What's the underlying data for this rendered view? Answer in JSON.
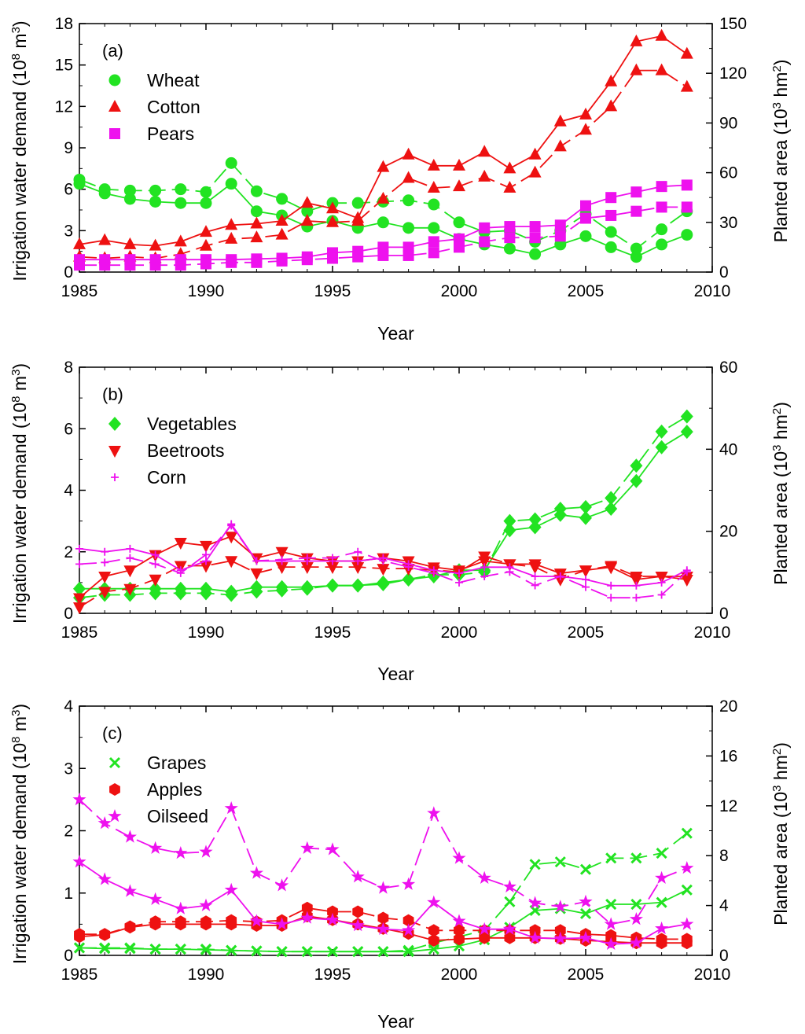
{
  "chart_data": [
    {
      "type": "line",
      "panel_label": "(a)",
      "xlabel": "Year",
      "ylabel_left": "Irrigation water demand (10",
      "ylabel_left_exp": "8",
      "ylabel_left_unit": " m",
      "ylabel_left_unit_exp": "3",
      "ylabel_left_tail": ")",
      "ylabel_right": "Planted area (10",
      "ylabel_right_exp": "3",
      "ylabel_right_unit": " hm",
      "ylabel_right_unit_exp": "2",
      "ylabel_right_tail": ")",
      "xlim": [
        1985,
        2010
      ],
      "ylim_left": [
        0,
        18
      ],
      "ylim_right": [
        0,
        150
      ],
      "xticks": [
        "1985",
        "1990",
        "1995",
        "2000",
        "2005",
        "2010"
      ],
      "yticks_left": [
        "0",
        "3",
        "6",
        "9",
        "12",
        "15",
        "18"
      ],
      "yticks_right": [
        "0",
        "30",
        "60",
        "90",
        "120",
        "150"
      ],
      "legend_placement": "top-left",
      "x": [
        1985,
        1986,
        1987,
        1988,
        1989,
        1990,
        1991,
        1992,
        1993,
        1994,
        1995,
        1996,
        1997,
        1998,
        1999,
        2000,
        2001,
        2002,
        2003,
        2004,
        2005,
        2006,
        2007,
        2008,
        2009
      ],
      "series": [
        {
          "name": "Wheat",
          "color": "#22e322",
          "marker": "circle",
          "legend": true,
          "demand": [
            6.4,
            5.7,
            5.3,
            5.1,
            5.0,
            5.0,
            6.4,
            4.4,
            4.1,
            3.3,
            3.7,
            3.2,
            3.6,
            3.2,
            3.2,
            2.4,
            2.0,
            1.7,
            1.3,
            2.0,
            2.6,
            1.8,
            1.1,
            2.0,
            2.7
          ],
          "area": [
            55.8,
            50.0,
            49.2,
            49.2,
            50.0,
            48.3,
            65.8,
            48.8,
            44.2,
            36.7,
            41.7,
            41.7,
            42.5,
            43.3,
            40.8,
            30.0,
            24.2,
            25.0,
            18.3,
            25.0,
            35.0,
            24.2,
            14.2,
            25.8,
            36.7
          ]
        },
        {
          "name": "Cotton",
          "color": "#ee1111",
          "marker": "triangle",
          "legend": true,
          "demand": [
            2.0,
            2.3,
            2.0,
            1.9,
            2.2,
            2.9,
            3.4,
            3.5,
            3.7,
            5.0,
            4.6,
            3.9,
            7.6,
            8.5,
            7.7,
            7.7,
            8.7,
            7.5,
            8.5,
            10.9,
            11.4,
            13.8,
            16.7,
            17.1,
            15.8
          ],
          "area": [
            9.2,
            8.3,
            9.2,
            8.3,
            10.8,
            15.8,
            20.0,
            20.8,
            22.5,
            30.8,
            30.0,
            30.8,
            44.2,
            56.7,
            50.8,
            51.7,
            57.5,
            50.8,
            60.0,
            75.8,
            85.8,
            100.0,
            121.7,
            121.7,
            111.7
          ]
        },
        {
          "name": "Pears",
          "color": "#ee11ee",
          "marker": "square",
          "legend": true,
          "demand": [
            0.9,
            0.9,
            0.9,
            0.9,
            0.9,
            0.9,
            0.9,
            0.95,
            1.0,
            1.1,
            1.4,
            1.5,
            1.8,
            1.8,
            2.2,
            2.4,
            3.2,
            3.3,
            3.3,
            3.4,
            4.8,
            5.4,
            5.8,
            6.2,
            6.3
          ],
          "area": [
            4.2,
            4.2,
            4.2,
            4.2,
            4.2,
            5.0,
            5.8,
            5.8,
            6.7,
            7.5,
            8.3,
            9.2,
            10.0,
            10.0,
            11.7,
            15.0,
            18.3,
            20.8,
            20.8,
            21.7,
            32.5,
            34.2,
            36.7,
            39.2,
            39.2
          ]
        }
      ]
    },
    {
      "type": "line",
      "panel_label": "(b)",
      "xlabel": "Year",
      "ylabel_left": "Irrigation water demand (10",
      "ylabel_left_exp": "8",
      "ylabel_left_unit": " m",
      "ylabel_left_unit_exp": "3",
      "ylabel_left_tail": ")",
      "ylabel_right": "Planted area (10",
      "ylabel_right_exp": "3",
      "ylabel_right_unit": " hm",
      "ylabel_right_unit_exp": "2",
      "ylabel_right_tail": ")",
      "xlim": [
        1985,
        2010
      ],
      "ylim_left": [
        0,
        8
      ],
      "ylim_right": [
        0,
        60
      ],
      "xticks": [
        "1985",
        "1990",
        "1995",
        "2000",
        "2005",
        "2010"
      ],
      "yticks_left": [
        "0",
        "2",
        "4",
        "6",
        "8"
      ],
      "yticks_right": [
        "0",
        "20",
        "40",
        "60"
      ],
      "legend_placement": "top-left",
      "x": [
        1985,
        1986,
        1987,
        1988,
        1989,
        1990,
        1991,
        1992,
        1993,
        1994,
        1995,
        1996,
        1997,
        1998,
        1999,
        2000,
        2001,
        2002,
        2003,
        2004,
        2005,
        2006,
        2007,
        2008,
        2009
      ],
      "series": [
        {
          "name": "Vegetables",
          "color": "#22e322",
          "marker": "diamond",
          "legend": true,
          "demand": [
            0.8,
            0.8,
            0.8,
            0.8,
            0.8,
            0.8,
            0.7,
            0.85,
            0.85,
            0.85,
            0.9,
            0.9,
            1.0,
            1.1,
            1.2,
            1.4,
            1.4,
            2.7,
            2.8,
            3.2,
            3.1,
            3.4,
            4.3,
            5.4,
            5.9
          ],
          "area": [
            3.8,
            4.5,
            4.5,
            4.9,
            4.9,
            4.9,
            4.5,
            5.3,
            5.6,
            6.0,
            6.8,
            6.8,
            7.1,
            8.3,
            9.4,
            9.4,
            10.1,
            22.5,
            22.9,
            25.5,
            25.9,
            28.1,
            36.0,
            44.3,
            48.0
          ]
        },
        {
          "name": "Beetroots",
          "color": "#ee1111",
          "marker": "triangle-down",
          "legend": true,
          "demand": [
            0.5,
            1.2,
            1.4,
            1.9,
            2.3,
            2.2,
            2.5,
            1.8,
            2.0,
            1.8,
            1.7,
            1.7,
            1.8,
            1.7,
            1.5,
            1.4,
            1.7,
            1.6,
            1.6,
            1.3,
            1.4,
            1.5,
            1.1,
            1.2,
            1.1
          ],
          "area": [
            1.5,
            5.3,
            6.0,
            8.3,
            11.6,
            11.6,
            12.8,
            9.8,
            11.3,
            11.3,
            11.3,
            11.3,
            10.9,
            10.9,
            10.5,
            10.1,
            13.9,
            12.0,
            11.3,
            8.3,
            10.5,
            11.6,
            9.0,
            9.0,
            9.0
          ]
        },
        {
          "name": "Corn",
          "color": "#ee11ee",
          "marker": "plus",
          "legend": true,
          "demand": [
            2.1,
            2.0,
            2.1,
            1.9,
            1.4,
            1.7,
            2.9,
            1.7,
            1.7,
            1.7,
            1.7,
            1.7,
            1.8,
            1.6,
            1.4,
            1.3,
            1.5,
            1.5,
            1.2,
            1.2,
            1.1,
            0.9,
            0.9,
            1.0,
            1.4
          ],
          "area": [
            12.0,
            12.4,
            13.5,
            12.0,
            9.8,
            14.3,
            21.4,
            12.8,
            13.1,
            13.5,
            13.5,
            15.0,
            12.8,
            11.3,
            9.8,
            7.5,
            9.0,
            10.1,
            6.8,
            9.0,
            6.4,
            3.8,
            3.8,
            4.5,
            10.1
          ]
        }
      ]
    },
    {
      "type": "line",
      "panel_label": "(c)",
      "xlabel": "Year",
      "ylabel_left": "Irrigation water demand (10",
      "ylabel_left_exp": "8",
      "ylabel_left_unit": " m",
      "ylabel_left_unit_exp": "3",
      "ylabel_left_tail": ")",
      "ylabel_right": "Planted area (10",
      "ylabel_right_exp": "3",
      "ylabel_right_unit": " hm",
      "ylabel_right_unit_exp": "2",
      "ylabel_right_tail": ")",
      "xlim": [
        1985,
        2010
      ],
      "ylim_left": [
        0,
        4
      ],
      "ylim_right": [
        0,
        20
      ],
      "xticks": [
        "1985",
        "1990",
        "1995",
        "2000",
        "2005",
        "2010"
      ],
      "yticks_left": [
        "0",
        "1",
        "2",
        "3",
        "4"
      ],
      "yticks_right": [
        "0",
        "4",
        "8",
        "12",
        "16",
        "20"
      ],
      "legend_placement": "top-left",
      "x": [
        1985,
        1986,
        1987,
        1988,
        1989,
        1990,
        1991,
        1992,
        1993,
        1994,
        1995,
        1996,
        1997,
        1998,
        1999,
        2000,
        2001,
        2002,
        2003,
        2004,
        2005,
        2006,
        2007,
        2008,
        2009
      ],
      "series": [
        {
          "name": "Grapes",
          "color": "#22e322",
          "marker": "x",
          "legend": true,
          "demand": [
            0.12,
            0.11,
            0.11,
            0.1,
            0.1,
            0.09,
            0.08,
            0.07,
            0.06,
            0.06,
            0.06,
            0.06,
            0.06,
            0.06,
            0.1,
            0.15,
            0.25,
            0.45,
            0.72,
            0.75,
            0.67,
            0.82,
            0.82,
            0.85,
            1.05
          ],
          "area": [
            0.6,
            0.6,
            0.6,
            0.5,
            0.5,
            0.5,
            0.4,
            0.35,
            0.3,
            0.3,
            0.3,
            0.3,
            0.3,
            0.4,
            1.0,
            1.5,
            2.0,
            4.3,
            7.3,
            7.5,
            6.9,
            7.8,
            7.8,
            8.2,
            9.8
          ]
        },
        {
          "name": "Apples",
          "color": "#ee1111",
          "marker": "hexagon",
          "legend": true,
          "demand": [
            0.3,
            0.33,
            0.45,
            0.5,
            0.5,
            0.5,
            0.5,
            0.48,
            0.48,
            0.63,
            0.57,
            0.5,
            0.43,
            0.35,
            0.24,
            0.26,
            0.28,
            0.28,
            0.28,
            0.27,
            0.24,
            0.22,
            0.2,
            0.2,
            0.2
          ],
          "area": [
            1.7,
            1.7,
            2.3,
            2.7,
            2.7,
            2.7,
            2.8,
            2.7,
            2.8,
            3.8,
            3.5,
            3.5,
            3.0,
            2.8,
            2.0,
            2.0,
            2.0,
            2.0,
            2.0,
            2.0,
            1.7,
            1.6,
            1.4,
            1.3,
            1.3
          ]
        },
        {
          "name": "Oilseed",
          "color": "#ee11ee",
          "marker": "star",
          "legend": true,
          "demand": [
            1.5,
            1.22,
            1.03,
            0.9,
            0.75,
            0.8,
            1.05,
            0.55,
            0.5,
            0.6,
            0.57,
            0.48,
            0.42,
            0.4,
            0.85,
            0.55,
            0.42,
            0.42,
            0.28,
            0.27,
            0.28,
            0.18,
            0.2,
            0.43,
            0.5
          ],
          "area": [
            12.5,
            10.6,
            9.5,
            8.6,
            8.2,
            8.3,
            11.8,
            6.6,
            5.6,
            8.6,
            8.5,
            6.3,
            5.4,
            5.7,
            11.4,
            7.8,
            6.2,
            5.5,
            4.2,
            3.9,
            4.3,
            2.5,
            2.9,
            6.2,
            7.0
          ]
        }
      ]
    }
  ]
}
